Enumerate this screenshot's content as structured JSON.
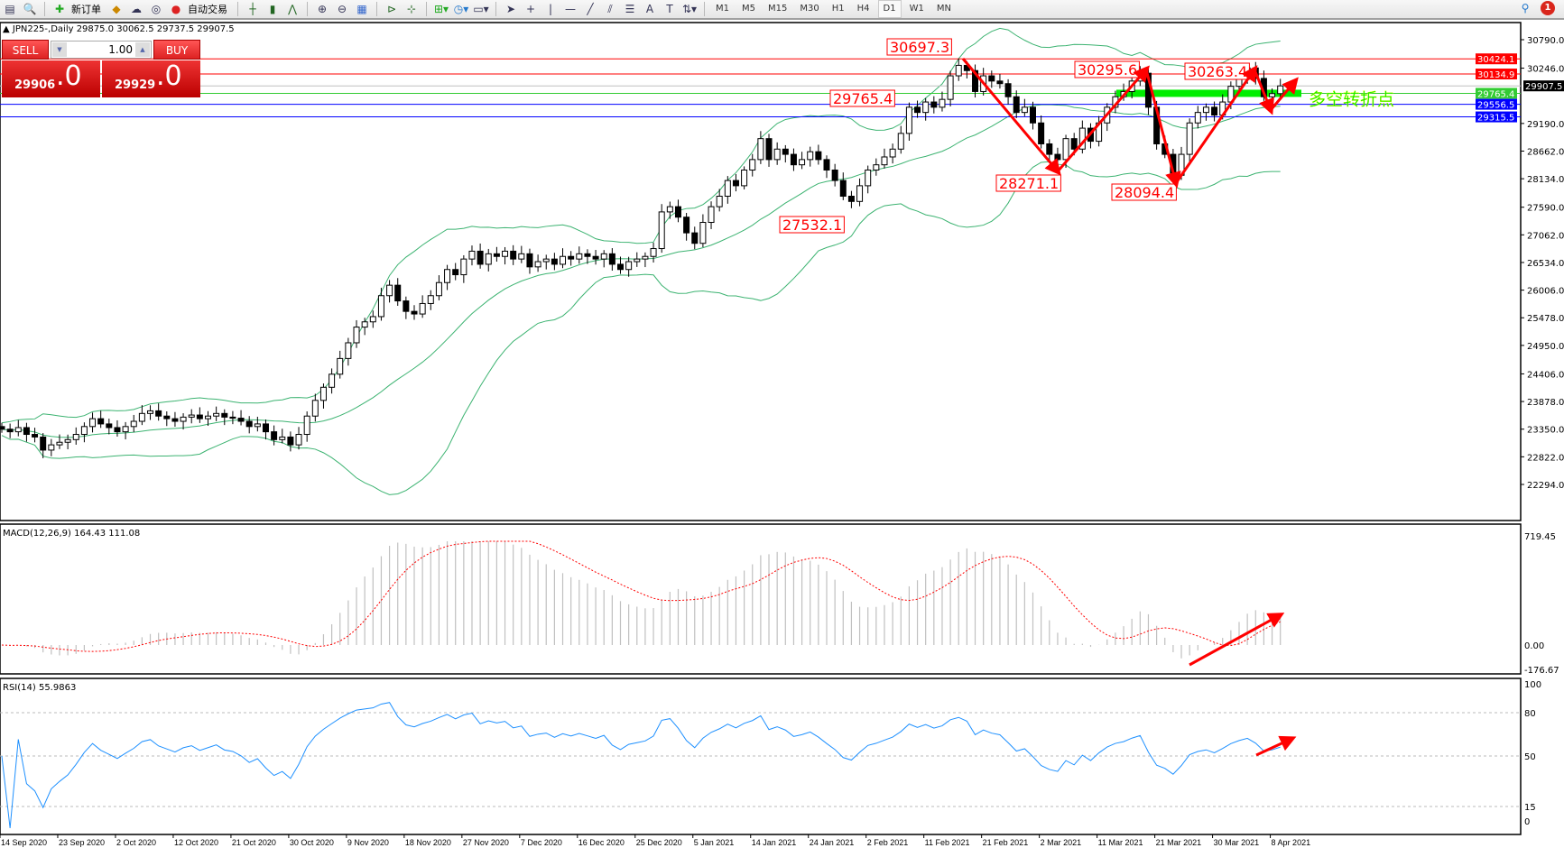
{
  "toolbar": {
    "new_order_label": "新订单",
    "auto_trading_label": "自动交易",
    "timeframes": [
      "M1",
      "M5",
      "M15",
      "M30",
      "H1",
      "H4",
      "D1",
      "W1",
      "MN"
    ],
    "active_timeframe": "D1",
    "notification_count": "1"
  },
  "chart_header": "JPN225-,Daily  29875.0 30062.5 29737.5 29907.5",
  "trade_panel": {
    "sell_label": "SELL",
    "buy_label": "BUY",
    "lot": "1.00",
    "sell_price_main": "29906",
    "sell_price_frac": ".0",
    "buy_price_main": "29929",
    "buy_price_frac": ".0"
  },
  "price_axis": {
    "labels": [
      "30790.0",
      "30246.0",
      "29190.0",
      "28662.0",
      "28134.0",
      "27590.0",
      "27062.0",
      "26534.0",
      "26006.0",
      "25478.0",
      "24950.0",
      "24406.0",
      "23878.0",
      "23350.0",
      "22822.0",
      "22294.0"
    ],
    "range": [
      22294.0,
      30790.0
    ]
  },
  "horizontal_lines": [
    {
      "price": "30424.1",
      "color": "#ff0000"
    },
    {
      "price": "30134.9",
      "color": "#ff0000"
    },
    {
      "price": "29907.5",
      "color": "#000000"
    },
    {
      "price": "29765.4",
      "color": "#33cc33"
    },
    {
      "price": "29556.5",
      "color": "#0000ff"
    },
    {
      "price": "29315.5",
      "color": "#0000ff"
    }
  ],
  "annotations": [
    "30697.3",
    "29765.4",
    "30295.6",
    "30263.4",
    "28271.1",
    "28094.4",
    "27532.1"
  ],
  "zone_label": "多空转折点",
  "macd": {
    "label": "MACD(12,26,9) 164.43 111.08",
    "axis": [
      "719.45",
      "0.00",
      "-176.67"
    ],
    "range": [
      -176.67,
      719.45
    ]
  },
  "rsi": {
    "label": "RSI(14) 55.9863",
    "axis": [
      "100",
      "80",
      "50",
      "15",
      "0"
    ],
    "levels": [
      80,
      50,
      15
    ]
  },
  "date_axis": [
    "14 Sep 2020",
    "23 Sep 2020",
    "2 Oct 2020",
    "12 Oct 2020",
    "21 Oct 2020",
    "30 Oct 2020",
    "9 Nov 2020",
    "18 Nov 2020",
    "27 Nov 2020",
    "7 Dec 2020",
    "16 Dec 2020",
    "25 Dec 2020",
    "5 Jan 2021",
    "14 Jan 2021",
    "24 Jan 2021",
    "2 Feb 2021",
    "11 Feb 2021",
    "21 Feb 2021",
    "2 Mar 2021",
    "11 Mar 2021",
    "21 Mar 2021",
    "30 Mar 2021",
    "8 Apr 2021"
  ],
  "colors": {
    "bull_body": "#ffffff",
    "bear_body": "#000000",
    "bands": "#3cb371",
    "annotation": "#ff0000",
    "macd_hist": "#c0c0c0",
    "macd_signal": "#ff0000",
    "rsi": "#1e90ff",
    "zone": "#00ee00"
  },
  "chart_data": {
    "type": "candlestick",
    "symbol": "JPN225-",
    "timeframe": "Daily",
    "ylim": [
      22294.0,
      30790.0
    ],
    "approx_closes": [
      23350,
      23300,
      23380,
      23250,
      23200,
      22950,
      23050,
      23100,
      23150,
      23250,
      23400,
      23550,
      23450,
      23380,
      23300,
      23400,
      23500,
      23650,
      23700,
      23600,
      23550,
      23500,
      23580,
      23620,
      23550,
      23600,
      23650,
      23580,
      23560,
      23500,
      23400,
      23450,
      23300,
      23150,
      23200,
      23050,
      23250,
      23600,
      23900,
      24150,
      24400,
      24700,
      25000,
      25300,
      25400,
      25500,
      25900,
      26100,
      25800,
      25600,
      25550,
      25750,
      25900,
      26150,
      26400,
      26300,
      26600,
      26750,
      26500,
      26700,
      26650,
      26750,
      26600,
      26700,
      26450,
      26550,
      26600,
      26500,
      26650,
      26600,
      26700,
      26650,
      26600,
      26700,
      26500,
      26400,
      26550,
      26600,
      26650,
      26800,
      27500,
      27600,
      27400,
      27100,
      26900,
      27300,
      27600,
      27800,
      28100,
      28000,
      28300,
      28500,
      28900,
      28500,
      28700,
      28600,
      28400,
      28500,
      28650,
      28500,
      28300,
      28100,
      27800,
      27700,
      28000,
      28300,
      28400,
      28550,
      28700,
      29000,
      29500,
      29400,
      29600,
      29500,
      29650,
      30100,
      30300,
      30200,
      29800,
      30100,
      30000,
      29950,
      29700,
      29400,
      29500,
      29200,
      28800,
      28600,
      28500,
      28900,
      28700,
      29100,
      28850,
      29200,
      29500,
      29700,
      29800,
      30000,
      30150,
      29500,
      28800,
      28600,
      28200,
      28600,
      29200,
      29400,
      29500,
      29350,
      29600,
      29900,
      30100,
      30250,
      30050,
      29700,
      29760,
      29907.5
    ]
  }
}
